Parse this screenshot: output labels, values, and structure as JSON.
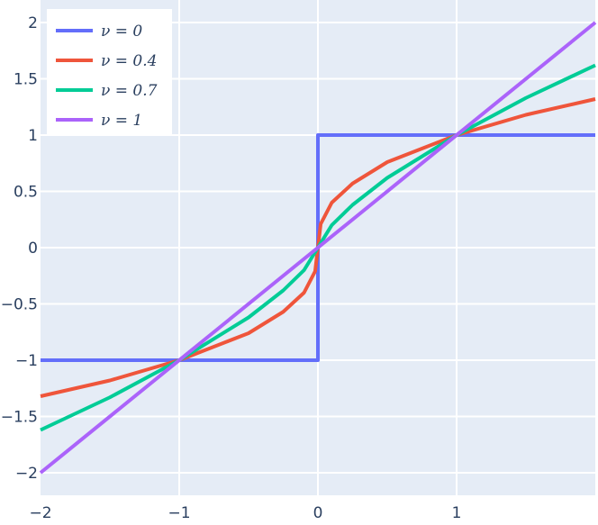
{
  "chart_data": {
    "type": "line",
    "xlim": [
      -2,
      2
    ],
    "ylim": [
      -2.2,
      2.2
    ],
    "grid": true,
    "legend_position": "top-left",
    "x_ticks": [
      {
        "value": -2,
        "label": "−2"
      },
      {
        "value": -1,
        "label": "−1"
      },
      {
        "value": 0,
        "label": "0"
      },
      {
        "value": 1,
        "label": "1"
      }
    ],
    "y_ticks": [
      {
        "value": 2,
        "label": "2"
      },
      {
        "value": 1.5,
        "label": "1.5"
      },
      {
        "value": 1,
        "label": "1"
      },
      {
        "value": 0.5,
        "label": "0.5"
      },
      {
        "value": 0,
        "label": "0"
      },
      {
        "value": -0.5,
        "label": "−0.5"
      },
      {
        "value": -1,
        "label": "−1"
      },
      {
        "value": -1.5,
        "label": "−1.5"
      },
      {
        "value": -2,
        "label": "−2"
      }
    ],
    "series": [
      {
        "name": "ν = 0",
        "color": "#636efa",
        "nu": 0,
        "x": [
          -2,
          -1,
          0,
          0,
          1,
          2
        ],
        "y": [
          -1,
          -1,
          -1,
          1,
          1,
          1
        ]
      },
      {
        "name": "ν = 0.4",
        "color": "#ef553b",
        "nu": 0.4,
        "x": [
          -2,
          -1.5,
          -1,
          -0.5,
          -0.25,
          -0.1,
          -0.02,
          0,
          0.02,
          0.1,
          0.25,
          0.5,
          1,
          1.5,
          2
        ],
        "y": [
          -1.32,
          -1.18,
          -1,
          -0.76,
          -0.57,
          -0.4,
          -0.21,
          0,
          0.21,
          0.4,
          0.57,
          0.76,
          1,
          1.18,
          1.32
        ]
      },
      {
        "name": "ν = 0.7",
        "color": "#00cc96",
        "nu": 0.7,
        "x": [
          -2,
          -1.5,
          -1,
          -0.5,
          -0.25,
          -0.1,
          0,
          0.1,
          0.25,
          0.5,
          1,
          1.5,
          2
        ],
        "y": [
          -1.62,
          -1.33,
          -1,
          -0.62,
          -0.38,
          -0.2,
          0,
          0.2,
          0.38,
          0.62,
          1,
          1.33,
          1.62
        ]
      },
      {
        "name": "ν = 1",
        "color": "#ab63fa",
        "nu": 1,
        "x": [
          -2,
          2
        ],
        "y": [
          -2,
          2
        ]
      }
    ]
  }
}
